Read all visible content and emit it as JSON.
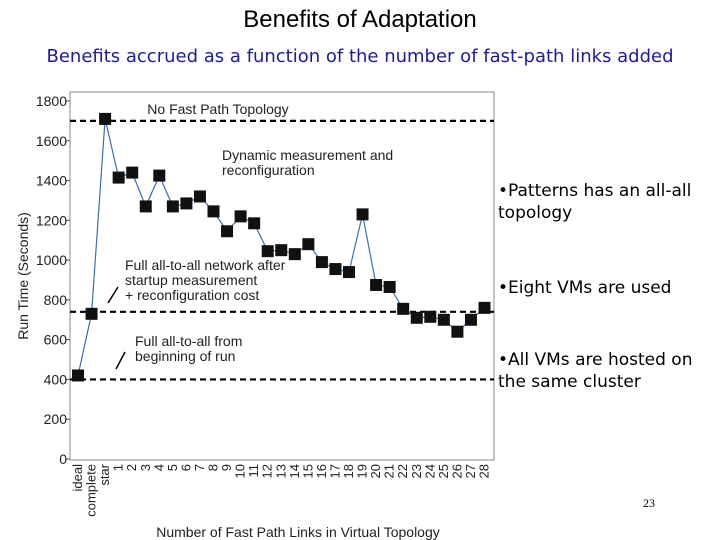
{
  "slide": {
    "title": "Benefits of Adaptation",
    "subtitle": "Benefits accrued as a function of the number of fast-path links added",
    "bullets": [
      "•Patterns has an all-all topology",
      "•Eight VMs are used",
      "•All VMs are hosted on the same cluster"
    ],
    "page_number": "23"
  },
  "chart_data": {
    "type": "line",
    "title": "",
    "xlabel": "Number of Fast Path Links in Virtual Topology",
    "ylabel": "Run Time (Seconds)",
    "ylim": [
      0,
      1800
    ],
    "yticks": [
      0,
      200,
      400,
      600,
      800,
      1000,
      1200,
      1400,
      1600,
      1800
    ],
    "grid": false,
    "categories": [
      "ideal",
      "complete",
      "star",
      "1",
      "2",
      "3",
      "4",
      "5",
      "6",
      "7",
      "8",
      "9",
      "10",
      "11",
      "12",
      "13",
      "14",
      "15",
      "16",
      "17",
      "18",
      "19",
      "20",
      "21",
      "22",
      "23",
      "24",
      "25",
      "26",
      "27",
      "28"
    ],
    "series": [
      {
        "color": "#3a6fb0",
        "marker": "square",
        "points": [
          {
            "x": "ideal",
            "y": 420
          },
          {
            "x": "complete",
            "y": 730
          },
          {
            "x": "star",
            "y": 1710
          },
          {
            "x": "1",
            "y": 1415
          },
          {
            "x": "2",
            "y": 1440
          },
          {
            "x": "3",
            "y": 1270
          },
          {
            "x": "4",
            "y": 1425
          },
          {
            "x": "5",
            "y": 1270
          },
          {
            "x": "6",
            "y": 1285
          },
          {
            "x": "7",
            "y": 1320
          },
          {
            "x": "8",
            "y": 1245
          },
          {
            "x": "9",
            "y": 1145
          },
          {
            "x": "10",
            "y": 1220
          },
          {
            "x": "11",
            "y": 1185
          },
          {
            "x": "12",
            "y": 1045
          },
          {
            "x": "13",
            "y": 1050
          },
          {
            "x": "14",
            "y": 1030
          },
          {
            "x": "15",
            "y": 1080
          },
          {
            "x": "16",
            "y": 990
          },
          {
            "x": "17",
            "y": 955
          },
          {
            "x": "18",
            "y": 940
          },
          {
            "x": "19",
            "y": 1230
          },
          {
            "x": "20",
            "y": 875
          },
          {
            "x": "21",
            "y": 865
          },
          {
            "x": "22",
            "y": 755
          },
          {
            "x": "23",
            "y": 710
          },
          {
            "x": "24",
            "y": 715
          },
          {
            "x": "25",
            "y": 700
          },
          {
            "x": "26",
            "y": 640
          },
          {
            "x": "27",
            "y": 700
          },
          {
            "x": "28",
            "y": 760
          }
        ]
      }
    ],
    "reference_lines": [
      {
        "y": 1700,
        "label": "No Fast Path Topology"
      },
      {
        "y": 740,
        "label": ""
      },
      {
        "y": 400,
        "label": ""
      }
    ],
    "annotations": [
      {
        "lines": [
          "Dynamic measurement and",
          "reconfiguration"
        ]
      },
      {
        "lines": [
          "Full all-to-all network after",
          "startup measurement",
          "+ reconfiguration cost"
        ]
      },
      {
        "lines": [
          "Full all-to-all from",
          "beginning of run"
        ]
      }
    ]
  }
}
